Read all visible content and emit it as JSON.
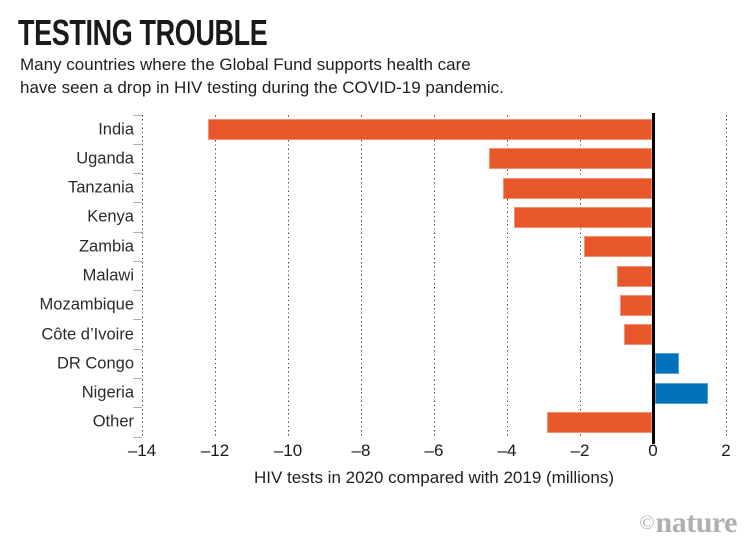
{
  "title": "TESTING TROUBLE",
  "subtitle_lines": [
    "Many countries where the Global Fund supports health care",
    "have seen a drop in HIV testing during the COVID-19 pandemic."
  ],
  "chart_data": {
    "type": "bar",
    "orientation": "horizontal",
    "title": "TESTING TROUBLE",
    "categories": [
      "India",
      "Uganda",
      "Tanzania",
      "Kenya",
      "Zambia",
      "Malawi",
      "Mozambique",
      "Côte d’Ivoire",
      "DR Congo",
      "Nigeria",
      "Other"
    ],
    "values": [
      -12.2,
      -4.5,
      -4.1,
      -3.8,
      -1.9,
      -1.0,
      -0.9,
      -0.8,
      0.7,
      1.5,
      -2.9
    ],
    "xlabel": "HIV tests in 2020 compared with 2019 (millions)",
    "ylabel": "",
    "xlim": [
      -14,
      2
    ],
    "xticks": [
      -14,
      -12,
      -10,
      -8,
      -6,
      -4,
      -2,
      0,
      2
    ],
    "tick_labels": [
      "–14",
      "–12",
      "–10",
      "–8",
      "–6",
      "–4",
      "–2",
      "0",
      "2"
    ],
    "grid": "dotted-vertical-gridlines",
    "legend": "none",
    "negative_color": "#e8572a",
    "positive_color": "#0072bc",
    "zero_line_color": "#000000"
  },
  "credit": {
    "symbol": "©",
    "name": "nature"
  }
}
